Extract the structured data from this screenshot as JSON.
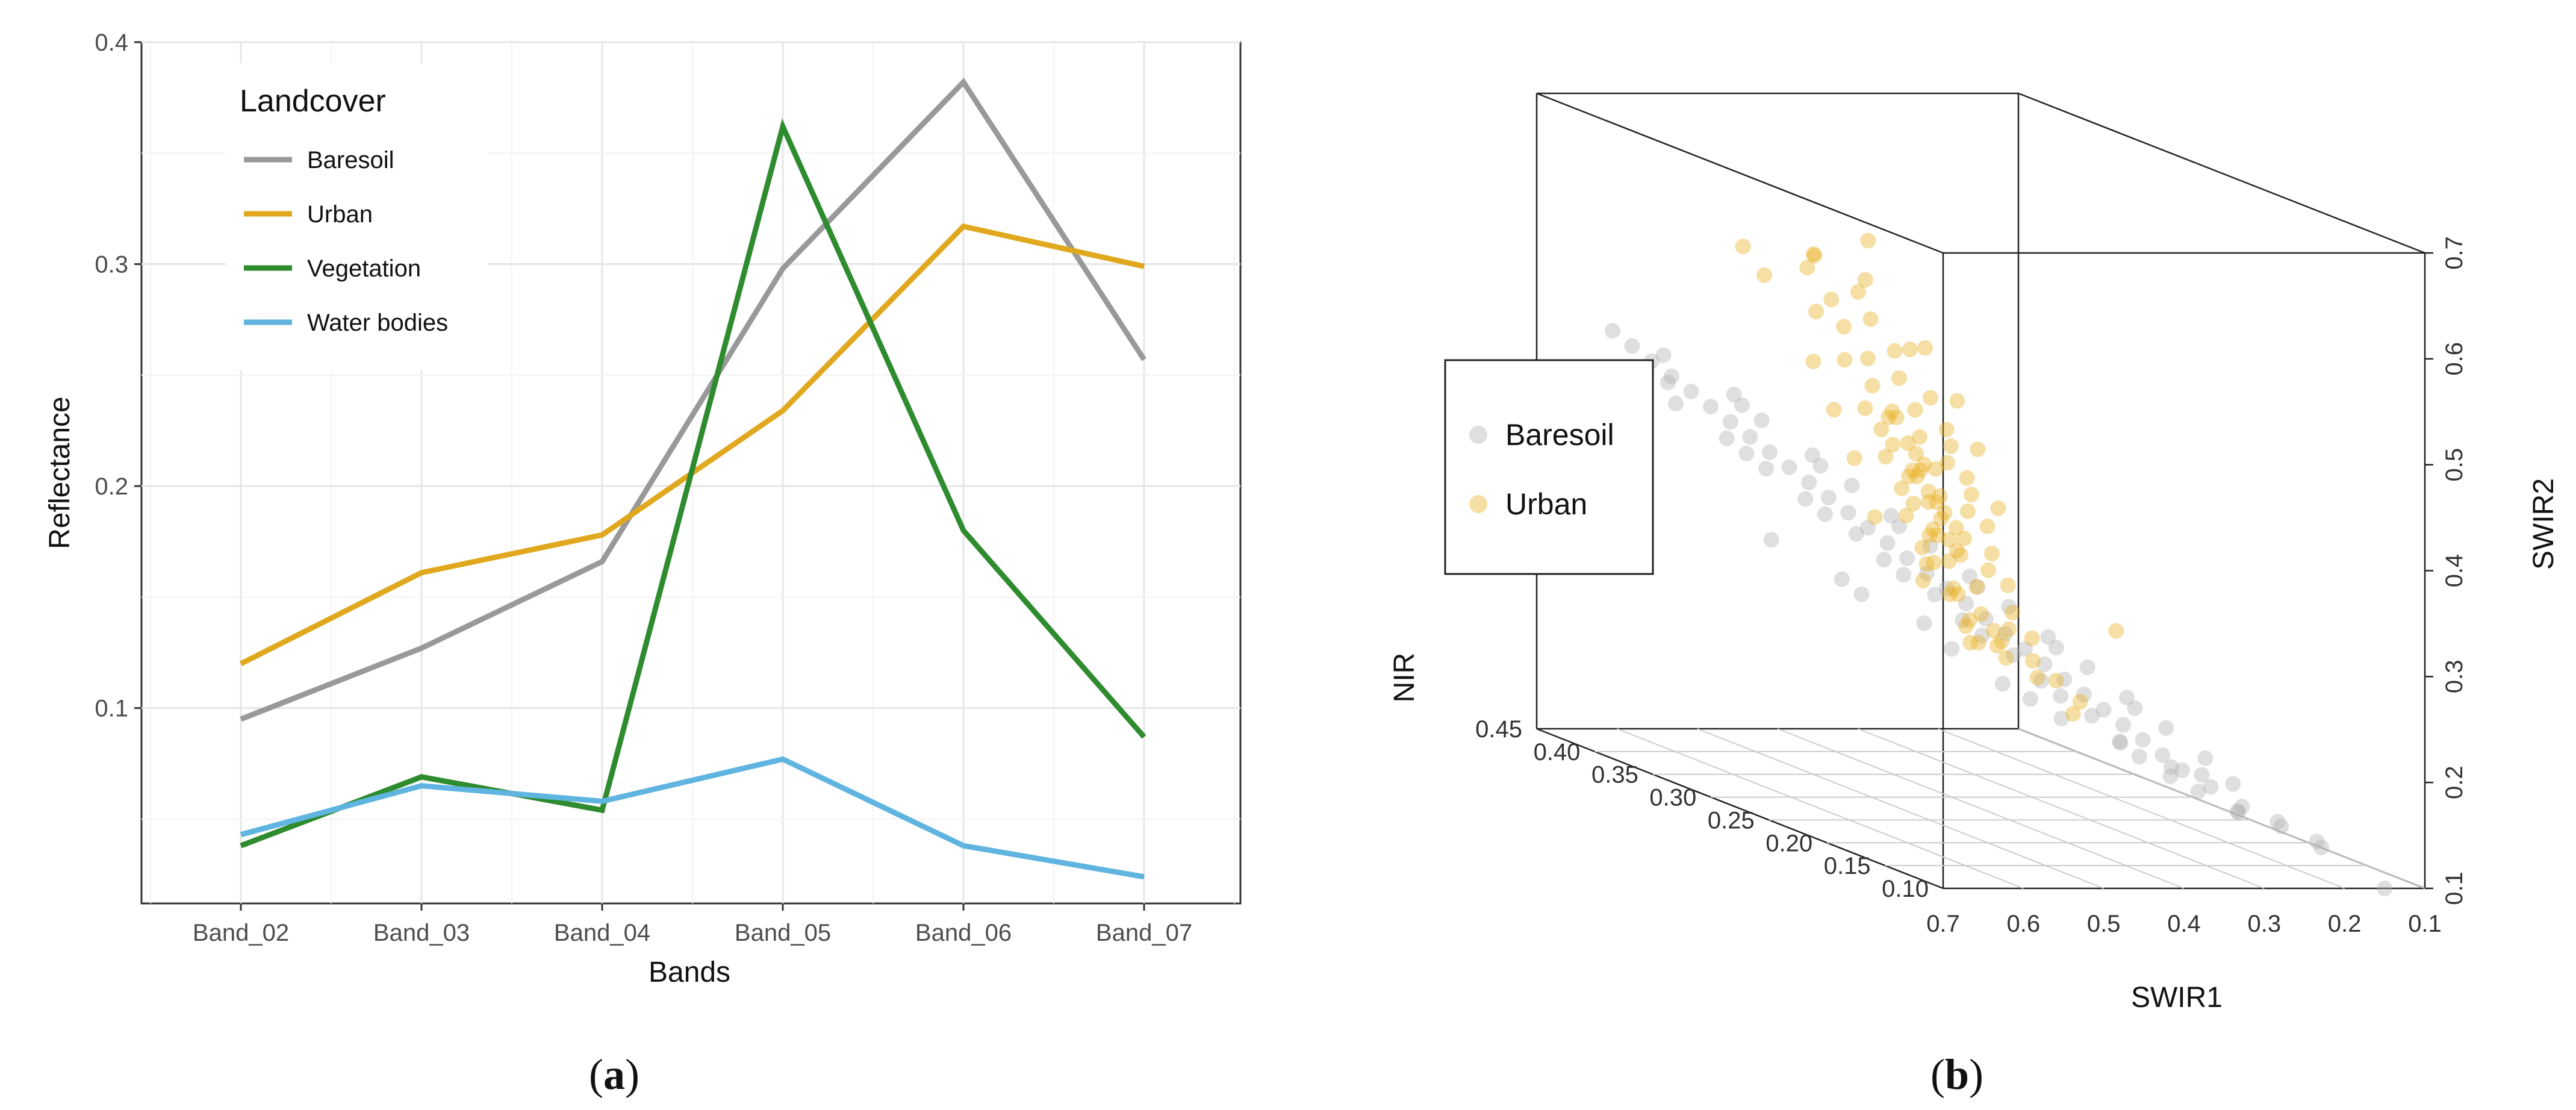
{
  "chart_data": [
    {
      "type": "line",
      "panel_label": "a",
      "title": "",
      "xlabel": "Bands",
      "ylabel": "Reflectance",
      "categories": [
        "Band_02",
        "Band_03",
        "Band_04",
        "Band_05",
        "Band_06",
        "Band_07"
      ],
      "ylim": [
        0.012,
        0.4
      ],
      "yticks": [
        0.1,
        0.2,
        0.3,
        0.4
      ],
      "ytick_labels": [
        "0.1",
        "0.2",
        "0.3",
        "0.4"
      ],
      "grid": true,
      "legend_title": "Landcover",
      "legend_position": "top-left",
      "series": [
        {
          "name": "Baresoil",
          "color": "#999999",
          "values": [
            0.095,
            0.127,
            0.166,
            0.298,
            0.382,
            0.257
          ]
        },
        {
          "name": "Urban",
          "color": "#E0A81E",
          "values": [
            0.12,
            0.161,
            0.178,
            0.234,
            0.317,
            0.299
          ]
        },
        {
          "name": "Vegetation",
          "color": "#2E8B2E",
          "values": [
            0.038,
            0.069,
            0.054,
            0.362,
            0.18,
            0.087
          ]
        },
        {
          "name": "Water bodies",
          "color": "#5FB4E0",
          "values": [
            0.043,
            0.065,
            0.058,
            0.077,
            0.038,
            0.024
          ]
        }
      ]
    },
    {
      "type": "scatter",
      "panel_label": "b",
      "projection": "3d",
      "xlabel": "SWIR1",
      "ylabel": "NIR",
      "zlabel": "SWIR2",
      "xlim": [
        0.1,
        0.7
      ],
      "ylim": [
        0.1,
        0.45
      ],
      "zlim": [
        0.1,
        0.7
      ],
      "xtick_labels": [
        "0.7",
        "0.6",
        "0.5",
        "0.4",
        "0.3",
        "0.2",
        "0.1"
      ],
      "ytick_labels": [
        "0.10",
        "0.15",
        "0.20",
        "0.25",
        "0.30",
        "0.35",
        "0.40",
        "0.45"
      ],
      "ztick_labels": [
        "0.1",
        "0.2",
        "0.3",
        "0.4",
        "0.5",
        "0.6",
        "0.7"
      ],
      "legend_position": "left",
      "series": [
        {
          "name": "Baresoil",
          "color": "#B0B0B0",
          "points": [
            [
              0.62,
              0.44,
              0.48
            ],
            [
              0.61,
              0.43,
              0.47
            ],
            [
              0.6,
              0.42,
              0.46
            ],
            [
              0.59,
              0.41,
              0.45
            ],
            [
              0.58,
              0.4,
              0.44
            ],
            [
              0.57,
              0.39,
              0.43
            ],
            [
              0.56,
              0.38,
              0.42
            ],
            [
              0.55,
              0.37,
              0.41
            ],
            [
              0.54,
              0.36,
              0.4
            ],
            [
              0.53,
              0.35,
              0.39
            ],
            [
              0.52,
              0.34,
              0.38
            ],
            [
              0.51,
              0.33,
              0.37
            ],
            [
              0.5,
              0.32,
              0.36
            ],
            [
              0.49,
              0.31,
              0.35
            ],
            [
              0.48,
              0.3,
              0.34
            ],
            [
              0.47,
              0.29,
              0.33
            ],
            [
              0.46,
              0.28,
              0.32
            ],
            [
              0.45,
              0.27,
              0.31
            ],
            [
              0.44,
              0.26,
              0.3
            ],
            [
              0.43,
              0.25,
              0.29
            ],
            [
              0.42,
              0.24,
              0.28
            ],
            [
              0.41,
              0.23,
              0.27
            ],
            [
              0.4,
              0.22,
              0.26
            ],
            [
              0.39,
              0.21,
              0.25
            ],
            [
              0.38,
              0.2,
              0.24
            ],
            [
              0.37,
              0.19,
              0.23
            ],
            [
              0.36,
              0.18,
              0.22
            ],
            [
              0.35,
              0.17,
              0.21
            ],
            [
              0.34,
              0.16,
              0.2
            ],
            [
              0.33,
              0.15,
              0.19
            ],
            [
              0.6,
              0.41,
              0.47
            ],
            [
              0.58,
              0.42,
              0.44
            ],
            [
              0.56,
              0.37,
              0.44
            ],
            [
              0.54,
              0.38,
              0.39
            ],
            [
              0.52,
              0.33,
              0.4
            ],
            [
              0.5,
              0.34,
              0.35
            ],
            [
              0.48,
              0.29,
              0.36
            ],
            [
              0.46,
              0.3,
              0.31
            ],
            [
              0.44,
              0.25,
              0.32
            ],
            [
              0.42,
              0.26,
              0.27
            ],
            [
              0.4,
              0.21,
              0.28
            ],
            [
              0.38,
              0.22,
              0.23
            ],
            [
              0.36,
              0.17,
              0.24
            ],
            [
              0.34,
              0.18,
              0.19
            ],
            [
              0.32,
              0.14,
              0.19
            ],
            [
              0.59,
              0.44,
              0.44
            ],
            [
              0.57,
              0.37,
              0.45
            ],
            [
              0.55,
              0.39,
              0.4
            ],
            [
              0.53,
              0.33,
              0.41
            ],
            [
              0.51,
              0.35,
              0.36
            ],
            [
              0.49,
              0.29,
              0.37
            ],
            [
              0.47,
              0.31,
              0.32
            ],
            [
              0.45,
              0.25,
              0.33
            ],
            [
              0.43,
              0.27,
              0.28
            ],
            [
              0.41,
              0.21,
              0.29
            ],
            [
              0.39,
              0.23,
              0.24
            ],
            [
              0.37,
              0.17,
              0.25
            ],
            [
              0.35,
              0.19,
              0.2
            ],
            [
              0.33,
              0.13,
              0.21
            ],
            [
              0.31,
              0.15,
              0.17
            ],
            [
              0.57,
              0.42,
              0.42
            ],
            [
              0.55,
              0.36,
              0.43
            ],
            [
              0.53,
              0.37,
              0.38
            ],
            [
              0.51,
              0.31,
              0.39
            ],
            [
              0.49,
              0.32,
              0.34
            ],
            [
              0.47,
              0.27,
              0.35
            ],
            [
              0.45,
              0.28,
              0.3
            ],
            [
              0.43,
              0.23,
              0.31
            ],
            [
              0.41,
              0.24,
              0.26
            ],
            [
              0.39,
              0.19,
              0.27
            ],
            [
              0.37,
              0.2,
              0.22
            ],
            [
              0.35,
              0.15,
              0.23
            ],
            [
              0.33,
              0.16,
              0.18
            ],
            [
              0.31,
              0.12,
              0.19
            ],
            [
              0.29,
              0.13,
              0.16
            ],
            [
              0.45,
              0.36,
              0.28
            ],
            [
              0.42,
              0.31,
              0.26
            ],
            [
              0.38,
              0.27,
              0.22
            ],
            [
              0.3,
              0.18,
              0.18
            ],
            [
              0.27,
              0.14,
              0.16
            ],
            [
              0.25,
              0.12,
              0.15
            ],
            [
              0.22,
              0.11,
              0.14
            ],
            [
              0.2,
              0.12,
              0.13
            ],
            [
              0.35,
              0.24,
              0.2
            ],
            [
              0.28,
              0.16,
              0.17
            ],
            [
              0.48,
              0.4,
              0.3
            ],
            [
              0.44,
              0.35,
              0.27
            ],
            [
              0.4,
              0.3,
              0.24
            ],
            [
              0.36,
              0.26,
              0.21
            ],
            [
              0.32,
              0.21,
              0.19
            ],
            [
              0.26,
              0.15,
              0.15
            ],
            [
              0.24,
              0.13,
              0.15
            ],
            [
              0.15,
              0.1,
              0.1
            ]
          ]
        },
        {
          "name": "Urban",
          "color": "#E8B01E",
          "points": [
            [
              0.62,
              0.22,
              0.66
            ],
            [
              0.66,
              0.3,
              0.62
            ],
            [
              0.6,
              0.28,
              0.62
            ],
            [
              0.58,
              0.3,
              0.6
            ],
            [
              0.56,
              0.27,
              0.59
            ],
            [
              0.55,
              0.3,
              0.57
            ],
            [
              0.53,
              0.28,
              0.56
            ],
            [
              0.52,
              0.31,
              0.54
            ],
            [
              0.5,
              0.28,
              0.53
            ],
            [
              0.49,
              0.31,
              0.51
            ],
            [
              0.48,
              0.29,
              0.5
            ],
            [
              0.47,
              0.32,
              0.48
            ],
            [
              0.46,
              0.29,
              0.47
            ],
            [
              0.45,
              0.32,
              0.45
            ],
            [
              0.44,
              0.3,
              0.44
            ],
            [
              0.43,
              0.33,
              0.42
            ],
            [
              0.42,
              0.3,
              0.41
            ],
            [
              0.41,
              0.33,
              0.39
            ],
            [
              0.4,
              0.31,
              0.38
            ],
            [
              0.39,
              0.34,
              0.36
            ],
            [
              0.38,
              0.31,
              0.35
            ],
            [
              0.37,
              0.34,
              0.33
            ],
            [
              0.36,
              0.32,
              0.32
            ],
            [
              0.35,
              0.35,
              0.3
            ],
            [
              0.34,
              0.32,
              0.29
            ],
            [
              0.33,
              0.35,
              0.27
            ],
            [
              0.32,
              0.33,
              0.26
            ],
            [
              0.31,
              0.35,
              0.24
            ],
            [
              0.3,
              0.33,
              0.23
            ],
            [
              0.29,
              0.36,
              0.22
            ],
            [
              0.54,
              0.32,
              0.55
            ],
            [
              0.51,
              0.26,
              0.54
            ],
            [
              0.49,
              0.33,
              0.5
            ],
            [
              0.47,
              0.27,
              0.49
            ],
            [
              0.45,
              0.34,
              0.45
            ],
            [
              0.43,
              0.28,
              0.44
            ],
            [
              0.41,
              0.35,
              0.4
            ],
            [
              0.39,
              0.29,
              0.39
            ],
            [
              0.37,
              0.36,
              0.34
            ],
            [
              0.35,
              0.3,
              0.33
            ],
            [
              0.33,
              0.37,
              0.29
            ],
            [
              0.31,
              0.31,
              0.27
            ],
            [
              0.29,
              0.34,
              0.24
            ],
            [
              0.27,
              0.32,
              0.22
            ],
            [
              0.26,
              0.35,
              0.21
            ],
            [
              0.46,
              0.31,
              0.46
            ],
            [
              0.44,
              0.31,
              0.43
            ],
            [
              0.42,
              0.32,
              0.4
            ],
            [
              0.4,
              0.32,
              0.37
            ],
            [
              0.38,
              0.33,
              0.34
            ],
            [
              0.36,
              0.33,
              0.31
            ],
            [
              0.34,
              0.34,
              0.28
            ],
            [
              0.32,
              0.34,
              0.25
            ],
            [
              0.45,
              0.27,
              0.46
            ],
            [
              0.43,
              0.34,
              0.43
            ],
            [
              0.41,
              0.28,
              0.41
            ],
            [
              0.39,
              0.35,
              0.37
            ],
            [
              0.37,
              0.29,
              0.36
            ],
            [
              0.35,
              0.36,
              0.31
            ],
            [
              0.33,
              0.3,
              0.3
            ],
            [
              0.44,
              0.32,
              0.45
            ],
            [
              0.42,
              0.29,
              0.42
            ],
            [
              0.4,
              0.33,
              0.39
            ],
            [
              0.38,
              0.3,
              0.37
            ],
            [
              0.36,
              0.34,
              0.33
            ],
            [
              0.34,
              0.31,
              0.31
            ],
            [
              0.32,
              0.35,
              0.27
            ],
            [
              0.3,
              0.32,
              0.25
            ],
            [
              0.28,
              0.36,
              0.22
            ],
            [
              0.27,
              0.3,
              0.21
            ],
            [
              0.4,
              0.32,
              0.38
            ],
            [
              0.39,
              0.32,
              0.37
            ],
            [
              0.38,
              0.32,
              0.36
            ],
            [
              0.37,
              0.33,
              0.35
            ],
            [
              0.36,
              0.33,
              0.33
            ],
            [
              0.35,
              0.33,
              0.32
            ],
            [
              0.41,
              0.32,
              0.4
            ],
            [
              0.42,
              0.31,
              0.41
            ],
            [
              0.43,
              0.31,
              0.42
            ],
            [
              0.37,
              0.31,
              0.34
            ],
            [
              0.58,
              0.25,
              0.61
            ],
            [
              0.63,
              0.26,
              0.63
            ],
            [
              0.59,
              0.33,
              0.58
            ],
            [
              0.52,
              0.24,
              0.55
            ],
            [
              0.5,
              0.35,
              0.49
            ],
            [
              0.48,
              0.24,
              0.5
            ],
            [
              0.46,
              0.36,
              0.44
            ],
            [
              0.44,
              0.25,
              0.45
            ],
            [
              0.42,
              0.37,
              0.39
            ],
            [
              0.4,
              0.26,
              0.39
            ],
            [
              0.3,
              0.3,
              0.25
            ],
            [
              0.28,
              0.34,
              0.23
            ],
            [
              0.25,
              0.33,
              0.2
            ],
            [
              0.24,
              0.3,
              0.19
            ],
            [
              0.22,
              0.32,
              0.17
            ],
            [
              0.34,
              0.2,
              0.3
            ],
            [
              0.38,
              0.38,
              0.33
            ],
            [
              0.32,
              0.38,
              0.27
            ]
          ]
        }
      ]
    }
  ]
}
